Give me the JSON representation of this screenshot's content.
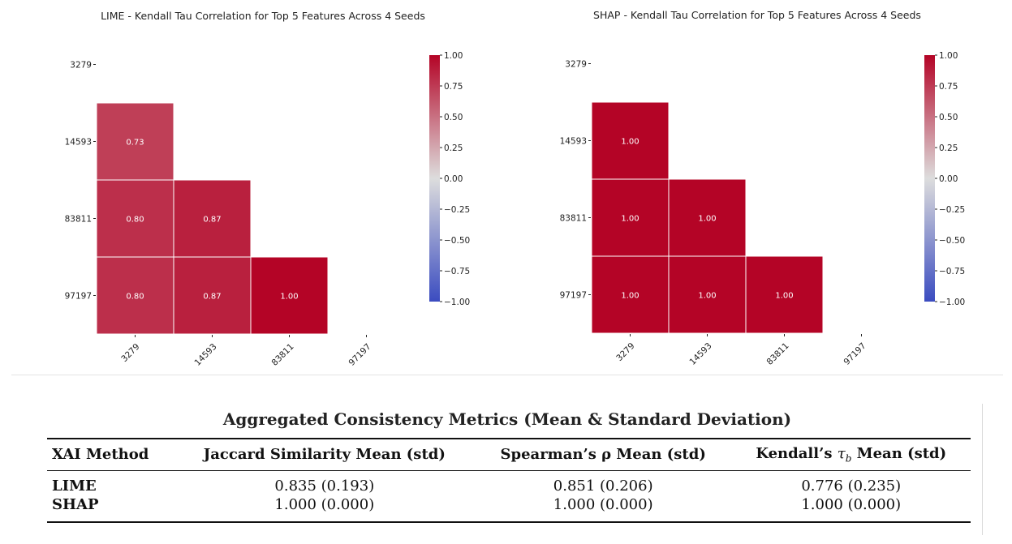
{
  "chart_data": [
    {
      "type": "heatmap",
      "title": "LIME - Kendall Tau Correlation for Top 5 Features Across 4 Seeds",
      "xlabel": "",
      "ylabel": "",
      "rows": [
        "3279",
        "14593",
        "83811",
        "97197"
      ],
      "cols": [
        "3279",
        "14593",
        "83811",
        "97197"
      ],
      "mask": "upper-triangle-and-diagonal",
      "cells": [
        {
          "row": "14593",
          "col": "3279",
          "value": 0.73,
          "label": "0.73"
        },
        {
          "row": "83811",
          "col": "3279",
          "value": 0.8,
          "label": "0.80"
        },
        {
          "row": "83811",
          "col": "14593",
          "value": 0.87,
          "label": "0.87"
        },
        {
          "row": "97197",
          "col": "3279",
          "value": 0.8,
          "label": "0.80"
        },
        {
          "row": "97197",
          "col": "14593",
          "value": 0.87,
          "label": "0.87"
        },
        {
          "row": "97197",
          "col": "83811",
          "value": 1.0,
          "label": "1.00"
        }
      ],
      "colorbar": {
        "colormap": "coolwarm",
        "vmin": -1.0,
        "vmax": 1.0,
        "ticks": [
          "1.00",
          "0.75",
          "0.50",
          "0.25",
          "0.00",
          "−0.25",
          "−0.50",
          "−0.75",
          "−1.00"
        ],
        "tick_values": [
          1.0,
          0.75,
          0.5,
          0.25,
          0.0,
          -0.25,
          -0.5,
          -0.75,
          -1.0
        ]
      },
      "grid": false,
      "legend": "none"
    },
    {
      "type": "heatmap",
      "title": "SHAP - Kendall Tau Correlation for Top 5 Features Across 4 Seeds",
      "xlabel": "",
      "ylabel": "",
      "rows": [
        "3279",
        "14593",
        "83811",
        "97197"
      ],
      "cols": [
        "3279",
        "14593",
        "83811",
        "97197"
      ],
      "mask": "upper-triangle-and-diagonal",
      "cells": [
        {
          "row": "14593",
          "col": "3279",
          "value": 1.0,
          "label": "1.00"
        },
        {
          "row": "83811",
          "col": "3279",
          "value": 1.0,
          "label": "1.00"
        },
        {
          "row": "83811",
          "col": "14593",
          "value": 1.0,
          "label": "1.00"
        },
        {
          "row": "97197",
          "col": "3279",
          "value": 1.0,
          "label": "1.00"
        },
        {
          "row": "97197",
          "col": "14593",
          "value": 1.0,
          "label": "1.00"
        },
        {
          "row": "97197",
          "col": "83811",
          "value": 1.0,
          "label": "1.00"
        }
      ],
      "colorbar": {
        "colormap": "coolwarm",
        "vmin": -1.0,
        "vmax": 1.0,
        "ticks": [
          "1.00",
          "0.75",
          "0.50",
          "0.25",
          "0.00",
          "−0.25",
          "−0.50",
          "−0.75",
          "−1.00"
        ],
        "tick_values": [
          1.0,
          0.75,
          0.5,
          0.25,
          0.0,
          -0.25,
          -0.5,
          -0.75,
          -1.0
        ]
      },
      "grid": false,
      "legend": "none"
    }
  ],
  "colors": {
    "cold": "#3b4cc0",
    "neutral": "#dddddd",
    "hot": "#b40426",
    "cell_text": "#ffffff",
    "cell_border": "#ffffff"
  },
  "table": {
    "caption": "Aggregated Consistency Metrics (Mean & Standard Deviation)",
    "headers": [
      "XAI Method",
      "Jaccard Similarity Mean (std)",
      "Spearman’s ρ Mean (std)",
      "Kendall’s τ_b Mean (std)"
    ],
    "rows": [
      [
        "LIME",
        "0.835 (0.193)",
        "0.851 (0.206)",
        "0.776 (0.235)"
      ],
      [
        "SHAP",
        "1.000 (0.000)",
        "1.000 (0.000)",
        "1.000 (0.000)"
      ]
    ]
  }
}
